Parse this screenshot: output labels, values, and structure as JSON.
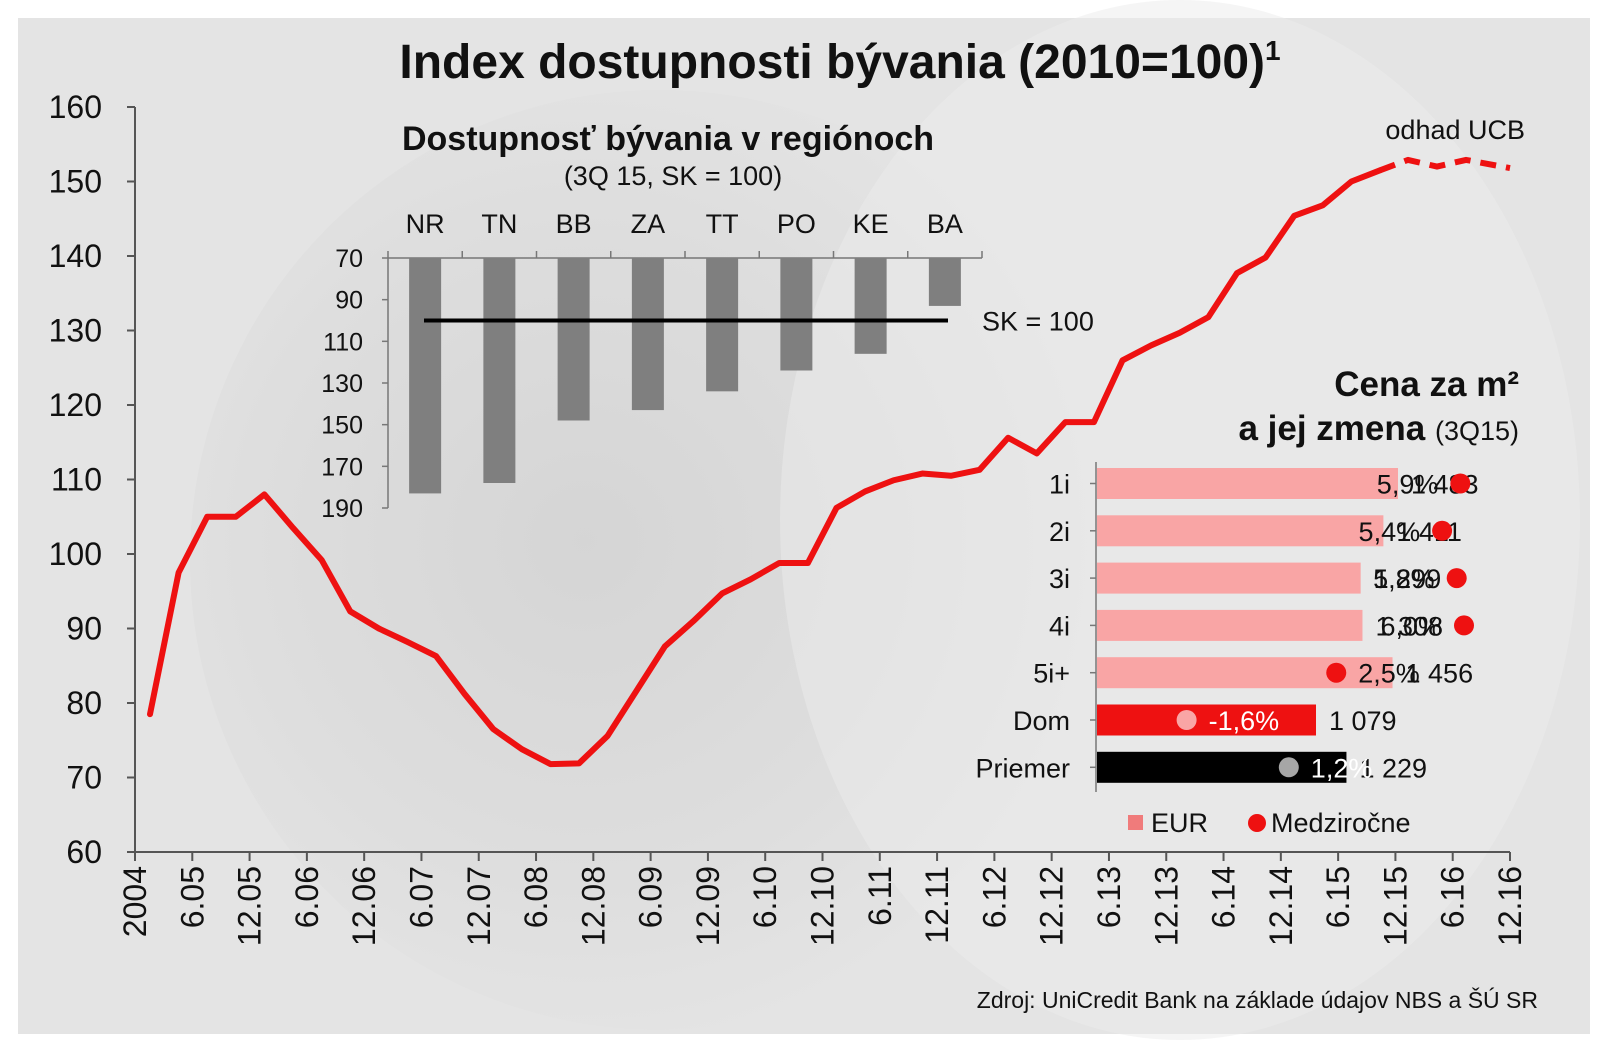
{
  "title": "Index dostupnosti bývania (2010=100)",
  "title_sup": "1",
  "source": "Zdroj: UniCredit Bank na základe údajov NBS a ŠÚ SR",
  "colors": {
    "background": "#e2e2e2",
    "line": "#ee1111",
    "bar_grey": "#7f7f7f",
    "bar_pink": "#f9a5a5",
    "bar_red": "#ee1111",
    "bar_black": "#000000",
    "dot_red": "#ee1111",
    "dot_light": "#f9a5a5",
    "dot_grey": "#a6a6a6"
  },
  "chart_data": [
    {
      "type": "line",
      "title": "Index dostupnosti bývania (2010=100)",
      "ylim": [
        60,
        160
      ],
      "y_ticks": [
        60,
        70,
        80,
        90,
        100,
        110,
        120,
        130,
        140,
        150,
        160
      ],
      "x_ticks": [
        "2004",
        "6.05",
        "12.05",
        "6.06",
        "12.06",
        "6.07",
        "12.07",
        "6.08",
        "12.08",
        "6.09",
        "12.09",
        "6.10",
        "12.10",
        "6.11",
        "12.11",
        "6.12",
        "12.12",
        "6.13",
        "12.13",
        "6.14",
        "12.14",
        "6.15",
        "12.15",
        "6.16",
        "12.16"
      ],
      "annotation": "odhad UCB",
      "series": [
        {
          "style": "solid",
          "values": [
            78.5,
            97.5,
            105,
            105,
            108,
            103.5,
            99.2,
            92.3,
            90,
            88.2,
            86.3,
            81.2,
            76.5,
            73.8,
            71.8,
            71.9,
            75.6,
            81.6,
            87.6,
            91,
            94.7,
            96.6,
            98.8,
            98.8,
            106.2,
            108.4,
            109.9,
            110.8,
            110.5,
            111.3,
            115.6,
            113.5,
            117.7,
            117.7,
            126,
            128,
            129.7,
            131.8,
            137.7,
            139.8,
            145.4,
            146.8,
            150,
            151.5
          ]
        },
        {
          "style": "dashed",
          "values": [
            151.5,
            152.9,
            152,
            152.9,
            151.8
          ]
        }
      ]
    },
    {
      "type": "bar",
      "title": "Dostupnosť bývania v regiónoch",
      "subtitle": "(3Q 15, SK = 100)",
      "categories": [
        "NR",
        "TN",
        "BB",
        "ZA",
        "TT",
        "PO",
        "KE",
        "BA"
      ],
      "values": [
        183,
        178,
        148,
        143,
        134,
        124,
        116,
        93
      ],
      "ylim": [
        70,
        190
      ],
      "y_ticks": [
        70,
        90,
        110,
        130,
        150,
        170,
        190
      ],
      "y_inverted": true,
      "reference_line": 100,
      "reference_label": "SK = 100"
    },
    {
      "type": "bar",
      "orientation": "horizontal",
      "title": "Cena za m²",
      "title_line2": "a jej zmena",
      "title_note": "(3Q15)",
      "categories": [
        "1i",
        "2i",
        "3i",
        "4i",
        "5i+",
        "Dom",
        "Priemer"
      ],
      "values": [
        1483,
        1411,
        1299,
        1308,
        1456,
        1079,
        1229
      ],
      "value_labels": [
        "1 483",
        "1 411",
        "1 299",
        "1 308",
        "1 456",
        "1 079",
        "1 229"
      ],
      "yoy_change": [
        5.9,
        5.4,
        5.8,
        6.0,
        2.5,
        -1.6,
        1.2
      ],
      "yoy_labels": [
        "5,9%",
        "5,4%",
        "5,8%",
        "6,0%",
        "2,5%",
        "-1,6%",
        "1,2%"
      ],
      "legend": [
        "EUR",
        "Medziročne"
      ]
    }
  ]
}
